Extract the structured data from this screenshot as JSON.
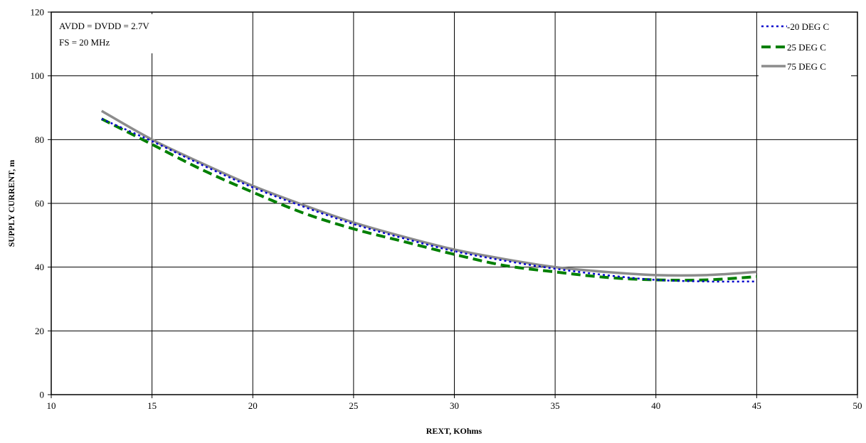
{
  "chart_data": {
    "type": "line",
    "title": "",
    "xlabel": "REXT, KOhms",
    "ylabel": "SUPPLY CURRENT, m",
    "xlim": [
      10,
      50
    ],
    "ylim": [
      0,
      120
    ],
    "xticks": [
      10,
      15,
      20,
      25,
      30,
      35,
      40,
      45,
      50
    ],
    "yticks": [
      0,
      20,
      40,
      60,
      80,
      100,
      120
    ],
    "grid": true,
    "legend_position": "top-right",
    "annotations": [
      "AVDD = DVDD = 2.7V",
      "FS = 20 MHz"
    ],
    "x": [
      12.5,
      15,
      17.5,
      20,
      22.5,
      25,
      27.5,
      30,
      32.5,
      35,
      37.5,
      40,
      42.5,
      45
    ],
    "series": [
      {
        "name": "-20 DEG C",
        "color": "#0000cc",
        "style": "dotted",
        "values": [
          86.5,
          79.5,
          72.0,
          65.0,
          59.0,
          53.5,
          49.0,
          45.0,
          42.0,
          39.5,
          37.5,
          36.0,
          35.5,
          35.5
        ]
      },
      {
        "name": "25 DEG C",
        "color": "#007f00",
        "style": "dashed",
        "values": [
          86.5,
          78.5,
          70.5,
          63.5,
          57.0,
          52.0,
          48.0,
          44.0,
          40.5,
          38.5,
          36.8,
          36.0,
          36.0,
          37.0
        ]
      },
      {
        "name": "75 DEG C",
        "color": "#8c8c8c",
        "style": "solid",
        "values": [
          89.0,
          80.0,
          72.5,
          65.5,
          59.5,
          54.0,
          49.5,
          45.5,
          42.5,
          40.0,
          38.5,
          37.5,
          37.5,
          38.5
        ]
      }
    ]
  }
}
